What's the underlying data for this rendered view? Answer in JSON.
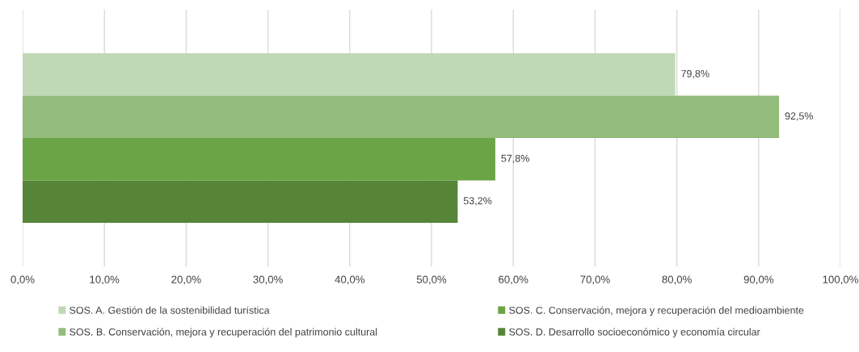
{
  "chart_data": {
    "type": "bar",
    "orientation": "horizontal",
    "categories": [
      null
    ],
    "series": [
      {
        "name": "SOS. A. Gestión de la sostenibilidad turística",
        "color": "#c0d8b5",
        "values": [
          79.8
        ],
        "value_labels": [
          "79,8%"
        ]
      },
      {
        "name": "SOS. B. Conservación, mejora y recuperación del patrimonio cultural",
        "color": "#93bc7c",
        "values": [
          92.5
        ],
        "value_labels": [
          "92,5%"
        ]
      },
      {
        "name": "SOS. C. Conservación, mejora y recuperación del medioambiente",
        "color": "#6aa446",
        "values": [
          57.8
        ],
        "value_labels": [
          "57,8%"
        ]
      },
      {
        "name": "SOS. D. Desarrollo socioeconómico y economía circular",
        "color": "#568538",
        "values": [
          53.2
        ],
        "value_labels": [
          "53,2%"
        ]
      }
    ],
    "xlim": [
      0,
      100
    ],
    "xticks": [
      {
        "value": 0,
        "label": "0,0%"
      },
      {
        "value": 10,
        "label": "10,0%"
      },
      {
        "value": 20,
        "label": "20,0%"
      },
      {
        "value": 30,
        "label": "30,0%"
      },
      {
        "value": 40,
        "label": "40,0%"
      },
      {
        "value": 50,
        "label": "50,0%"
      },
      {
        "value": 60,
        "label": "60,0%"
      },
      {
        "value": 70,
        "label": "70,0%"
      },
      {
        "value": 80,
        "label": "80,0%"
      },
      {
        "value": 90,
        "label": "90,0%"
      },
      {
        "value": 100,
        "label": "100,0%"
      }
    ],
    "grid": "x",
    "legend": "bottom"
  }
}
